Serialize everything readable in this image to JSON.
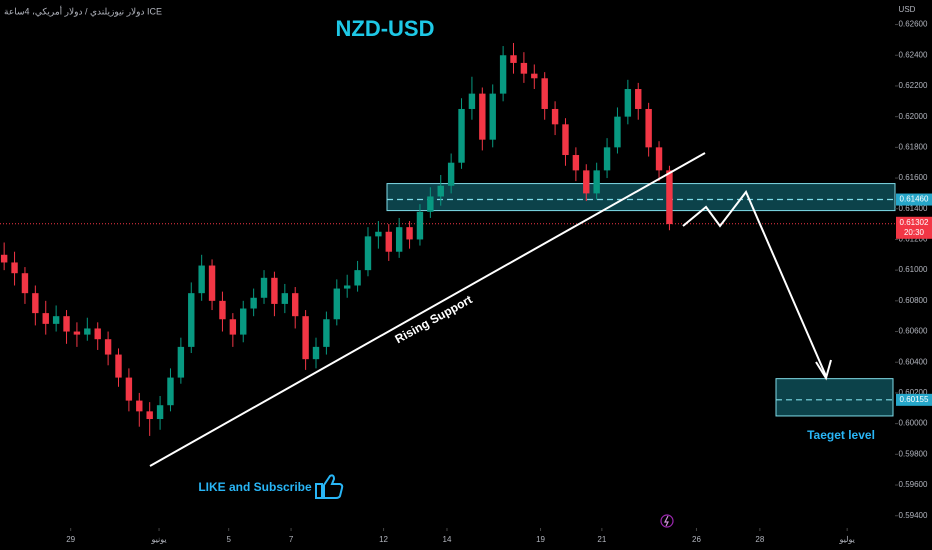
{
  "chart_data": {
    "type": "candlestick",
    "title": "NZD-USD",
    "symbol_description": "دولار نيوزيلندي / دولار أمريكي، 4ساعة ICE",
    "currency": "USD",
    "up_color": "#089981",
    "down_color": "#f23645",
    "open": [
      0.611,
      0.6105,
      0.6098,
      0.6085,
      0.6072,
      0.6065,
      0.607,
      0.606,
      0.6058,
      0.6062,
      0.6055,
      0.6045,
      0.603,
      0.6015,
      0.6008,
      0.6003,
      0.6012,
      0.603,
      0.605,
      0.6085,
      0.6103,
      0.608,
      0.6068,
      0.6058,
      0.6075,
      0.6082,
      0.6095,
      0.6078,
      0.6085,
      0.607,
      0.6042,
      0.605,
      0.6068,
      0.6088,
      0.609,
      0.61,
      0.6122,
      0.6125,
      0.6112,
      0.6128,
      0.612,
      0.6138,
      0.6148,
      0.6155,
      0.617,
      0.6205,
      0.6215,
      0.6185,
      0.6215,
      0.624,
      0.6235,
      0.6228,
      0.6225,
      0.6205,
      0.6195,
      0.6175,
      0.6165,
      0.615,
      0.6165,
      0.618,
      0.62,
      0.6218,
      0.6205,
      0.618,
      0.6165
    ],
    "high": [
      0.6118,
      0.6112,
      0.6102,
      0.609,
      0.608,
      0.6077,
      0.6074,
      0.6066,
      0.6069,
      0.6066,
      0.606,
      0.6049,
      0.6036,
      0.602,
      0.6014,
      0.6018,
      0.6036,
      0.6056,
      0.6092,
      0.611,
      0.6107,
      0.6086,
      0.6072,
      0.608,
      0.6088,
      0.61,
      0.6099,
      0.6091,
      0.6089,
      0.6074,
      0.6056,
      0.6073,
      0.6094,
      0.6097,
      0.6106,
      0.6128,
      0.6132,
      0.613,
      0.6134,
      0.6132,
      0.6143,
      0.6154,
      0.6162,
      0.6176,
      0.6212,
      0.6226,
      0.6219,
      0.6221,
      0.6246,
      0.6248,
      0.6242,
      0.6234,
      0.6229,
      0.621,
      0.6199,
      0.618,
      0.6169,
      0.617,
      0.6186,
      0.6206,
      0.6224,
      0.6222,
      0.6209,
      0.6184,
      0.6168
    ],
    "low": [
      0.61,
      0.609,
      0.6078,
      0.6064,
      0.6058,
      0.606,
      0.6052,
      0.605,
      0.6054,
      0.6048,
      0.6038,
      0.6024,
      0.6008,
      0.5998,
      0.5992,
      0.5996,
      0.6008,
      0.6026,
      0.6046,
      0.608,
      0.6074,
      0.606,
      0.605,
      0.6053,
      0.607,
      0.6078,
      0.607,
      0.6072,
      0.6062,
      0.6035,
      0.6036,
      0.6045,
      0.6064,
      0.6082,
      0.6086,
      0.6096,
      0.6114,
      0.6106,
      0.6108,
      0.6114,
      0.6116,
      0.6134,
      0.6142,
      0.615,
      0.6166,
      0.6198,
      0.6178,
      0.618,
      0.621,
      0.6228,
      0.6222,
      0.6218,
      0.6198,
      0.6188,
      0.6168,
      0.6158,
      0.6145,
      0.6146,
      0.616,
      0.6176,
      0.6195,
      0.6198,
      0.6174,
      0.6158,
      0.6126
    ],
    "close": [
      0.6105,
      0.6098,
      0.6085,
      0.6072,
      0.6065,
      0.607,
      0.606,
      0.6058,
      0.6062,
      0.6055,
      0.6045,
      0.603,
      0.6015,
      0.6008,
      0.6003,
      0.6012,
      0.603,
      0.605,
      0.6085,
      0.6103,
      0.608,
      0.6068,
      0.6058,
      0.6075,
      0.6082,
      0.6095,
      0.6078,
      0.6085,
      0.607,
      0.6042,
      0.605,
      0.6068,
      0.6088,
      0.609,
      0.61,
      0.6122,
      0.6125,
      0.6112,
      0.6128,
      0.612,
      0.6138,
      0.6148,
      0.6155,
      0.617,
      0.6205,
      0.6215,
      0.6185,
      0.6215,
      0.624,
      0.6235,
      0.6228,
      0.6225,
      0.6205,
      0.6195,
      0.6175,
      0.6165,
      0.615,
      0.6165,
      0.618,
      0.62,
      0.6218,
      0.6205,
      0.618,
      0.6165,
      0.613
    ],
    "xlim": [
      -0.4,
      85.7
    ],
    "xticks": [
      {
        "value": 6.4,
        "label": "29"
      },
      {
        "value": 14.9,
        "label": "يونيو"
      },
      {
        "value": 21.6,
        "label": "5"
      },
      {
        "value": 27.6,
        "label": "7"
      },
      {
        "value": 36.5,
        "label": "12"
      },
      {
        "value": 42.6,
        "label": "14"
      },
      {
        "value": 51.6,
        "label": "19"
      },
      {
        "value": 57.5,
        "label": "21"
      },
      {
        "value": 66.6,
        "label": "26"
      },
      {
        "value": 72.7,
        "label": "28"
      },
      {
        "value": 81.1,
        "label": "يوليو"
      }
    ],
    "ylim": [
      0.5932,
      0.6276
    ],
    "yticks": [
      {
        "value": 0.626,
        "label": "0.62600"
      },
      {
        "value": 0.624,
        "label": "0.62400"
      },
      {
        "value": 0.622,
        "label": "0.62200"
      },
      {
        "value": 0.62,
        "label": "0.62000"
      },
      {
        "value": 0.618,
        "label": "0.61800"
      },
      {
        "value": 0.616,
        "label": "0.61600"
      },
      {
        "value": 0.614,
        "label": "0.61400"
      },
      {
        "value": 0.612,
        "label": "0.61200"
      },
      {
        "value": 0.61,
        "label": "0.61000"
      },
      {
        "value": 0.608,
        "label": "0.60800"
      },
      {
        "value": 0.606,
        "label": "0.60600"
      },
      {
        "value": 0.604,
        "label": "0.60400"
      },
      {
        "value": 0.602,
        "label": "0.60200"
      },
      {
        "value": 0.6,
        "label": "0.60000"
      },
      {
        "value": 0.598,
        "label": "0.59800"
      },
      {
        "value": 0.596,
        "label": "0.59600"
      },
      {
        "value": 0.594,
        "label": "0.59400"
      }
    ],
    "zones": [
      {
        "top": 0.61564,
        "bottom": 0.61388,
        "level": {
          "value": 0.6146,
          "label": "0.61460"
        }
      },
      {
        "top": 0.60293,
        "bottom": 0.6005,
        "level": {
          "value": 0.60155,
          "label": "0.60155"
        }
      }
    ],
    "last_price": {
      "value": 0.61302,
      "label": "0.61302",
      "countdown": "20:30"
    },
    "annotations": {
      "support": "Rising Support",
      "cta": "LIKE and Subscribe",
      "target": "Taeget level"
    }
  }
}
